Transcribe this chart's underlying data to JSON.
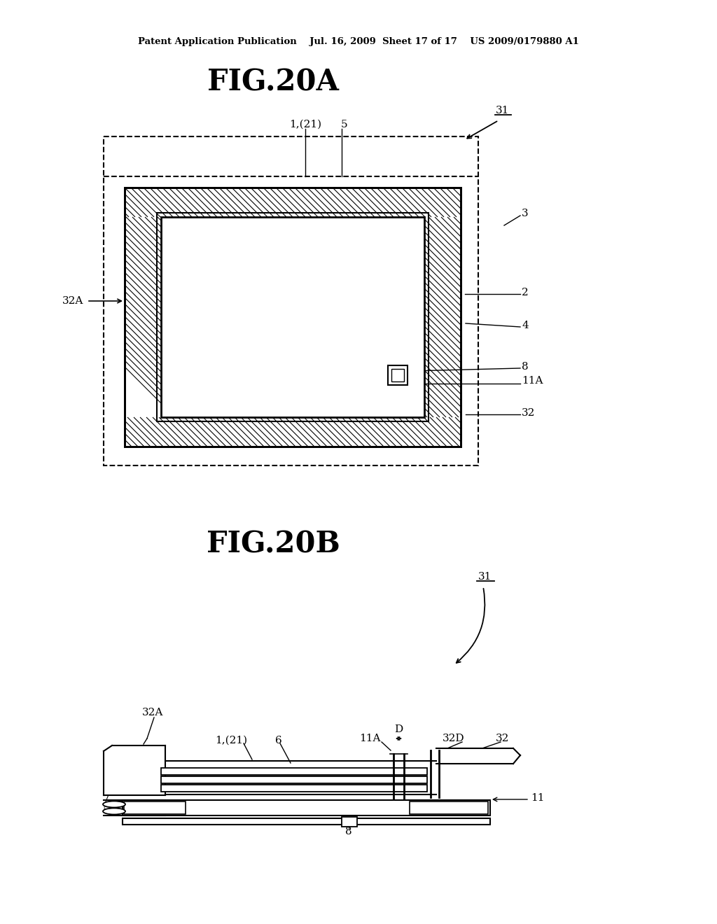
{
  "bg": "#ffffff",
  "header": "Patent Application Publication    Jul. 16, 2009  Sheet 17 of 17    US 2009/0179880 A1",
  "title_a": "FIG.20A",
  "title_b": "FIG.20B",
  "hatch_color": "#000000",
  "line_color": "#000000"
}
